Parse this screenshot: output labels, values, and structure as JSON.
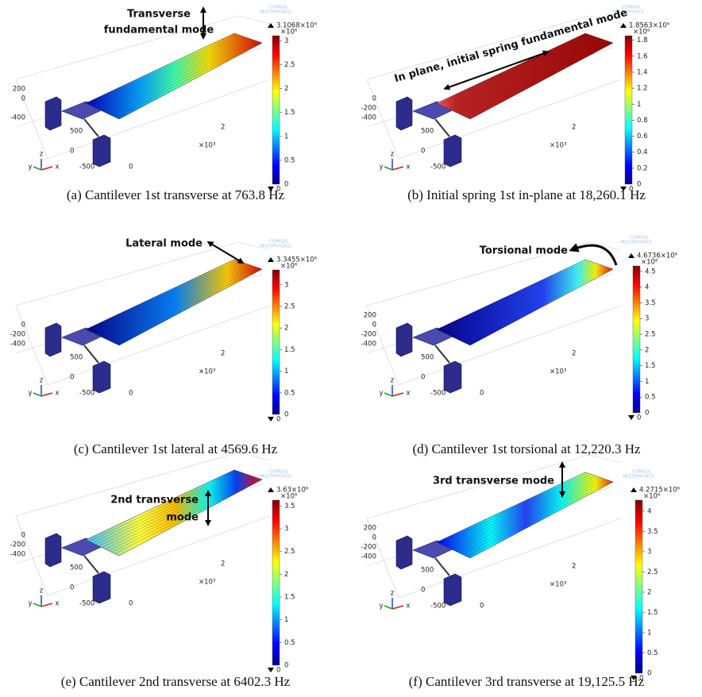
{
  "panels": [
    {
      "caption": "(a) Cantilever 1st transverse at 763.8 Hz",
      "annotation": [
        "Transverse",
        "fundamental mode"
      ],
      "logo": [
        "COMSOL",
        "MULTIPHYSICS"
      ],
      "colorbar": {
        "max": "3.1068×10⁶",
        "scale": "×10⁶",
        "ticks": [
          "3",
          "2.5",
          "2",
          "1.5",
          "1",
          "0.5"
        ],
        "min": "0"
      },
      "axis_labels": [
        "200",
        "0",
        "-400",
        "500",
        "0",
        "-500",
        "0",
        "2",
        "×10³"
      ],
      "triad": [
        "y",
        "z",
        "x"
      ]
    },
    {
      "caption": "(b) Initial spring 1st in-plane at 18,260.1 Hz",
      "annotation": [
        "In plane, initial spring fundamental mode"
      ],
      "logo": [
        "COMSOL",
        "MULTIPHYSICS"
      ],
      "colorbar": {
        "max": "1.8563×10⁶",
        "scale": "×10⁶",
        "ticks": [
          "1.8",
          "1.6",
          "1.4",
          "1.2",
          "1",
          "0.8",
          "0.6",
          "0.4",
          "0.2"
        ],
        "min": "0"
      },
      "axis_labels": [
        "0",
        "-200",
        "-400",
        "500",
        "0",
        "-500",
        "2",
        "×10³"
      ],
      "triad": [
        "y",
        "z",
        "x"
      ]
    },
    {
      "caption": "(c) Cantilever 1st lateral at 4569.6 Hz",
      "annotation": [
        "Lateral mode"
      ],
      "logo": [
        "COMSOL",
        "MULTIPHYSICS"
      ],
      "colorbar": {
        "max": "3.3455×10⁶",
        "scale": "×10⁶",
        "ticks": [
          "3",
          "2.5",
          "2",
          "1.5",
          "1",
          "0.5"
        ],
        "min": "0"
      },
      "axis_labels": [
        "0",
        "-200",
        "-400",
        "500",
        "0",
        "-500",
        "0",
        "2",
        "×10³"
      ],
      "triad": [
        "y",
        "z",
        "x"
      ]
    },
    {
      "caption": "(d) Cantilever 1st torsional at 12,220.3 Hz",
      "annotation": [
        "Torsional mode"
      ],
      "logo": [
        "COMSOL",
        "MULTIPHYSICS"
      ],
      "colorbar": {
        "max": "4.6736×10⁶",
        "scale": "×10⁶",
        "ticks": [
          "4.5",
          "4",
          "3.5",
          "3",
          "2.5",
          "2",
          "1.5",
          "1",
          "0.5"
        ],
        "min": "0"
      },
      "axis_labels": [
        "200",
        "0",
        "-200",
        "-400",
        "500",
        "0",
        "-500",
        "0",
        "2",
        "×10³"
      ],
      "triad": [
        "y",
        "z",
        "x"
      ]
    },
    {
      "caption": "(e) Cantilever 2nd transverse at 6402.3 Hz",
      "annotation": [
        "2nd transverse",
        "mode"
      ],
      "logo": [
        "COMSOL",
        "MULTIPHYSICS"
      ],
      "colorbar": {
        "max": "3.63×10⁶",
        "scale": "×10⁶",
        "ticks": [
          "3.5",
          "3",
          "2.5",
          "2",
          "1.5",
          "1",
          "0.5"
        ],
        "min": "0"
      },
      "axis_labels": [
        "0",
        "-200",
        "-400",
        "500",
        "0",
        "-500",
        "0",
        "2",
        "×10³"
      ],
      "triad": [
        "y",
        "z",
        "x"
      ]
    },
    {
      "caption": "(f) Cantilever 3rd transverse at 19,125.5 Hz",
      "annotation": [
        "3rd transverse mode"
      ],
      "logo": [
        "COMSOL",
        "MULTIPHYSICS"
      ],
      "colorbar": {
        "max": "4.2715×10⁶",
        "scale": "×10⁶",
        "ticks": [
          "4",
          "3.5",
          "3",
          "2.5",
          "2",
          "1.5",
          "1",
          "0.5"
        ],
        "min": "0"
      },
      "axis_labels": [
        "200",
        "0",
        "-200",
        "-400",
        "500",
        "0",
        "-500",
        "0",
        "2",
        "×10³"
      ],
      "triad": [
        "y",
        "z",
        "x"
      ]
    }
  ]
}
